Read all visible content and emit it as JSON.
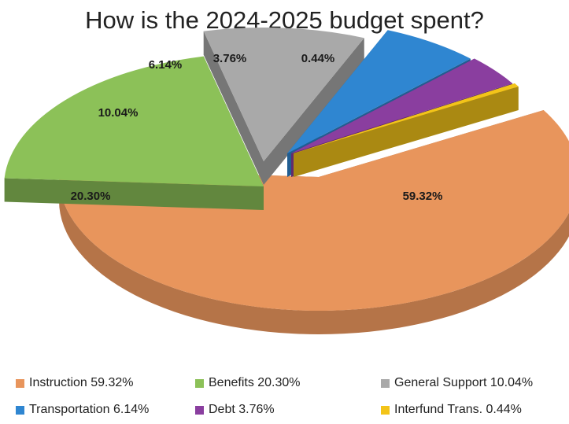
{
  "chart_data": {
    "type": "pie",
    "title": "How is the 2024-2025 budget spent?",
    "slices": [
      {
        "name": "Instruction",
        "value": 59.32,
        "label": "59.32%",
        "legend": "Instruction 59.32%",
        "color": "#e8955c"
      },
      {
        "name": "Benefits",
        "value": 20.3,
        "label": "20.30%",
        "legend": "Benefits 20.30%",
        "color": "#8cc158"
      },
      {
        "name": "General Support",
        "value": 10.04,
        "label": "10.04%",
        "legend": "General Support 10.04%",
        "color": "#a9a9a9"
      },
      {
        "name": "Transportation",
        "value": 6.14,
        "label": "6.14%",
        "legend": "Transportation 6.14%",
        "color": "#2f86d1"
      },
      {
        "name": "Debt",
        "value": 3.76,
        "label": "3.76%",
        "legend": "Debt 3.76%",
        "color": "#8a3e9f"
      },
      {
        "name": "Interfund Trans.",
        "value": 0.44,
        "label": "0.44%",
        "legend": "Interfund Trans. 0.44%",
        "color": "#f3c419"
      }
    ],
    "legend_position": "bottom"
  }
}
